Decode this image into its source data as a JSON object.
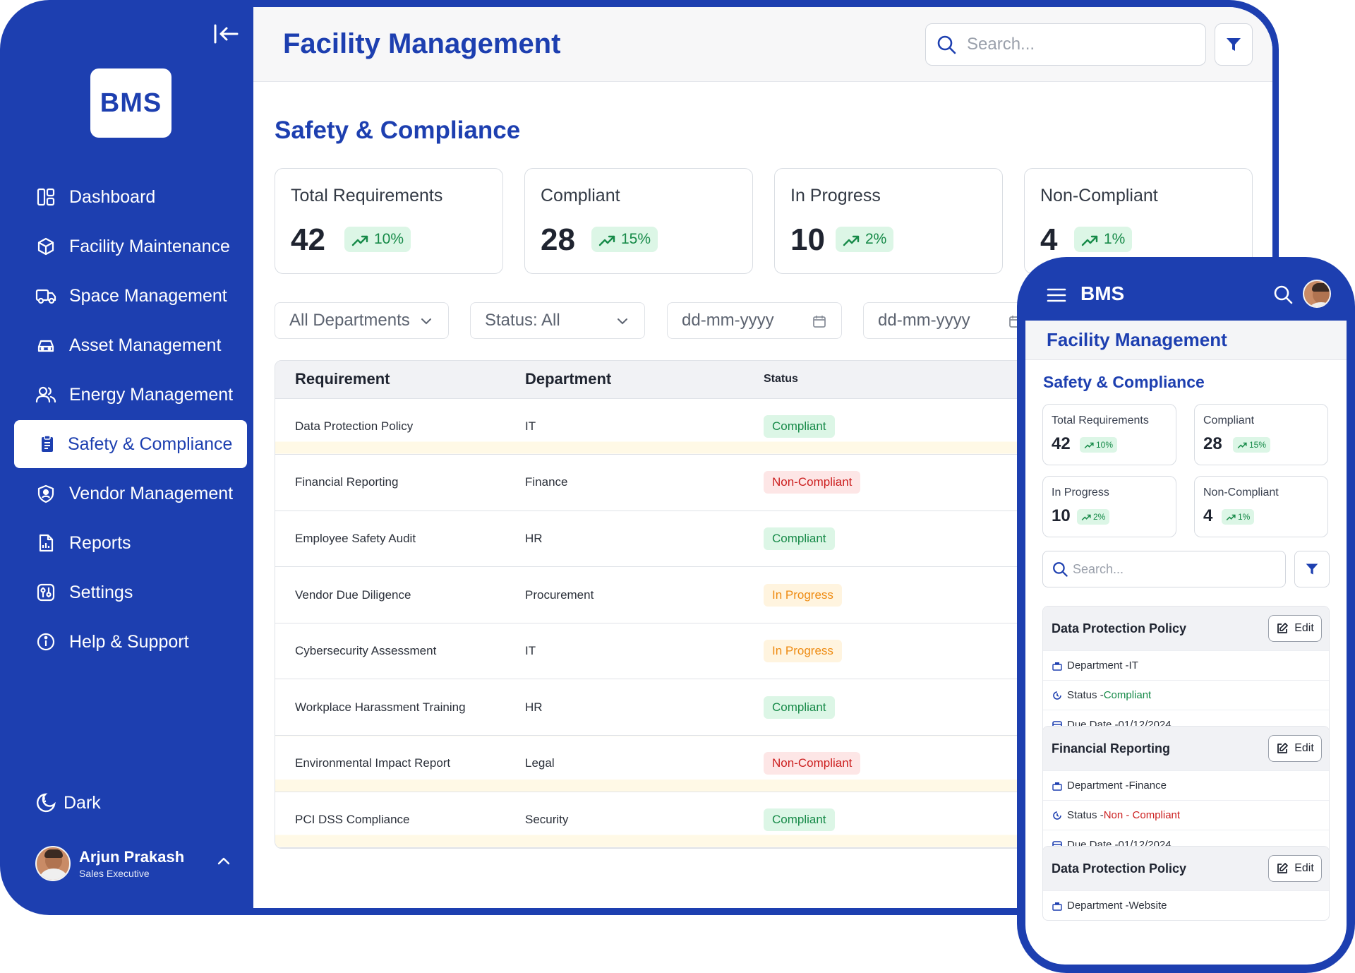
{
  "brand": {
    "logo": "BMS",
    "app_title": "Facility Management"
  },
  "sidebar": {
    "items": [
      {
        "label": "Dashboard",
        "icon": "dashboard-icon"
      },
      {
        "label": "Facility Maintenance",
        "icon": "cube-icon"
      },
      {
        "label": "Space Management",
        "icon": "truck-icon"
      },
      {
        "label": "Asset Management",
        "icon": "car-icon"
      },
      {
        "label": "Energy Management",
        "icon": "users-icon"
      },
      {
        "label": "Safety & Compliance",
        "icon": "clipboard-icon",
        "active": true
      },
      {
        "label": "Vendor Management",
        "icon": "shield-user-icon"
      },
      {
        "label": "Reports",
        "icon": "report-icon"
      },
      {
        "label": "Settings",
        "icon": "settings-sliders-icon"
      },
      {
        "label": "Help & Support",
        "icon": "info-icon"
      }
    ],
    "dark_label": "Dark",
    "user": {
      "name": "Arjun Prakash",
      "role": "Sales Executive"
    }
  },
  "header": {
    "search_placeholder": "Search..."
  },
  "page": {
    "title": "Safety & Compliance"
  },
  "stats": [
    {
      "label": "Total Requirements",
      "value": "42",
      "change": "10%"
    },
    {
      "label": "Compliant",
      "value": "28",
      "change": "15%"
    },
    {
      "label": "In Progress",
      "value": "10",
      "change": "2%"
    },
    {
      "label": "Non-Compliant",
      "value": "4",
      "change": "1%"
    }
  ],
  "filters": {
    "department": "All Departments",
    "status": "Status: All",
    "date_from": "dd-mm-yyyy",
    "date_to": "dd-mm-yyyy"
  },
  "table": {
    "headers": [
      "Requirement",
      "Department",
      "Status"
    ],
    "rows": [
      {
        "requirement": "Data Protection Policy",
        "department": "IT",
        "status": "Compliant"
      },
      {
        "requirement": "Financial Reporting",
        "department": "Finance",
        "status": "Non-Compliant"
      },
      {
        "requirement": "Employee Safety Audit",
        "department": "HR",
        "status": "Compliant"
      },
      {
        "requirement": "Vendor Due Diligence",
        "department": "Procurement",
        "status": "In Progress"
      },
      {
        "requirement": "Cybersecurity Assessment",
        "department": "IT",
        "status": "In Progress"
      },
      {
        "requirement": "Workplace Harassment Training",
        "department": "HR",
        "status": "Compliant"
      },
      {
        "requirement": "Environmental Impact Report",
        "department": "Legal",
        "status": "Non-Compliant"
      },
      {
        "requirement": "PCI DSS Compliance",
        "department": "Security",
        "status": "Compliant"
      }
    ]
  },
  "mobile": {
    "brand": "BMS",
    "app_title": "Facility Management",
    "page_title": "Safety & Compliance",
    "stats": [
      {
        "label": "Total Requirements",
        "value": "42",
        "change": "10%"
      },
      {
        "label": "Compliant",
        "value": "28",
        "change": "15%"
      },
      {
        "label": "In Progress",
        "value": "10",
        "change": "2%"
      },
      {
        "label": "Non-Compliant",
        "value": "4",
        "change": "1%"
      }
    ],
    "search_placeholder": "Search...",
    "edit_label": "Edit",
    "dept_prefix": "Department - ",
    "status_prefix": "Status - ",
    "due_prefix": "Due Date - ",
    "items": [
      {
        "title": "Data Protection Policy",
        "department": "IT",
        "status": "Compliant",
        "due": "01/12/2024"
      },
      {
        "title": "Financial Reporting",
        "department": "Finance",
        "status": "Non - Compliant",
        "due": "01/12/2024"
      },
      {
        "title": "Data Protection Policy",
        "department": "Website"
      }
    ]
  },
  "colors": {
    "primary": "#1d3fb0",
    "success": "#168a48",
    "danger": "#cc1f1f",
    "warning": "#ee8b12"
  }
}
